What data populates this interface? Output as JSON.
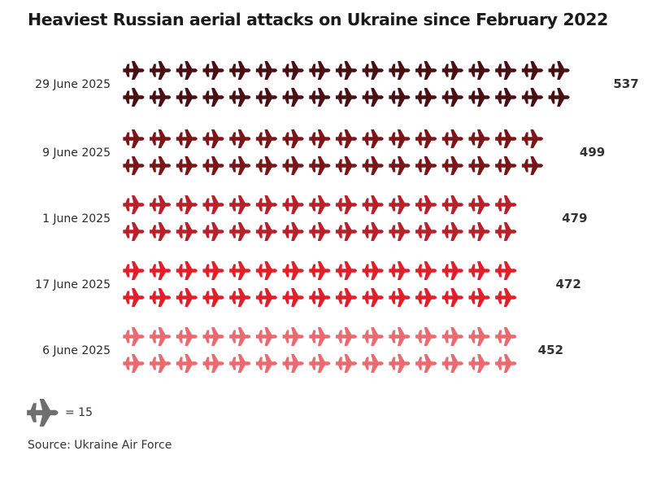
{
  "title": "Heaviest Russian aerial attacks on Ukraine since February 2022",
  "legend": {
    "icon": "plane-icon",
    "label": "= 15",
    "units_per_icon": 15
  },
  "source": "Source: Ukraine Air Force",
  "chart_data": {
    "type": "bar",
    "style": "pictogram",
    "title": "Heaviest Russian aerial attacks on Ukraine since February 2022",
    "units_per_icon": 15,
    "icon_rows_per_bar": 2,
    "categories": [
      "29 June 2025",
      "9 June 2025",
      "1 June 2025",
      "17 June 2025",
      "6 June 2025"
    ],
    "values": [
      537,
      499,
      479,
      472,
      452
    ],
    "colors": [
      "#4a0f12",
      "#7a1518",
      "#b8202a",
      "#e11f29",
      "#ea6a70"
    ]
  }
}
